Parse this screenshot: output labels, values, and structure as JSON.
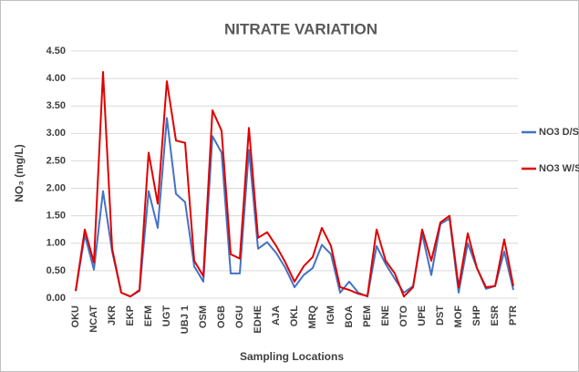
{
  "chart_data": {
    "type": "line",
    "title": "NITRATE VARIATION",
    "x_label": "Sampling Locations",
    "y_label": "NO₃ (mg/L)",
    "categories": [
      "OKU",
      null,
      "NCAT",
      null,
      "JKR",
      null,
      "EKP",
      null,
      "EFM",
      null,
      "UGT",
      null,
      "UBJ 1",
      null,
      "OSM",
      null,
      "OGB",
      null,
      "OGU",
      null,
      "EDHE",
      null,
      "AJA",
      null,
      "OKL",
      null,
      "MRQ",
      null,
      "IGM",
      null,
      "BOA",
      null,
      "PEM",
      null,
      "ENE",
      null,
      "OTO",
      null,
      "UPE",
      null,
      "DST",
      null,
      "MOF",
      null,
      "SHP",
      null,
      "ESR",
      null,
      "PTR"
    ],
    "series": [
      {
        "name": "NO3 D/S",
        "color": "#4472c4",
        "values": [
          0.13,
          1.15,
          0.52,
          1.95,
          0.85,
          0.1,
          0.03,
          0.13,
          1.95,
          1.28,
          3.28,
          1.9,
          1.75,
          0.58,
          0.3,
          2.95,
          2.65,
          0.45,
          0.45,
          2.7,
          0.9,
          1.02,
          0.82,
          0.55,
          0.2,
          0.42,
          0.55,
          0.97,
          0.8,
          0.1,
          0.3,
          0.1,
          0.03,
          0.95,
          0.62,
          0.35,
          0.1,
          0.22,
          1.17,
          0.42,
          1.35,
          1.45,
          0.1,
          1.0,
          0.55,
          0.17,
          0.22,
          0.85,
          0.15
        ]
      },
      {
        "name": "NO3 W/S",
        "color": "#e00000",
        "values": [
          0.13,
          1.25,
          0.65,
          4.12,
          0.9,
          0.1,
          0.03,
          0.15,
          2.65,
          1.72,
          3.95,
          2.87,
          2.83,
          0.68,
          0.4,
          3.42,
          3.05,
          0.8,
          0.72,
          3.1,
          1.1,
          1.2,
          0.95,
          0.65,
          0.3,
          0.58,
          0.75,
          1.28,
          0.95,
          0.2,
          0.15,
          0.08,
          0.04,
          1.25,
          0.68,
          0.45,
          0.03,
          0.2,
          1.25,
          0.68,
          1.38,
          1.5,
          0.2,
          1.18,
          0.55,
          0.2,
          0.22,
          1.07,
          0.22
        ]
      }
    ],
    "ylim": [
      0,
      4.5
    ],
    "yticks": [
      {
        "value": 0,
        "label": "0.00"
      },
      {
        "value": 0.5,
        "label": "0.50"
      },
      {
        "value": 1,
        "label": "1.00"
      },
      {
        "value": 1.5,
        "label": "1.50"
      },
      {
        "value": 2,
        "label": "2.00"
      },
      {
        "value": 2.5,
        "label": "2.50"
      },
      {
        "value": 3,
        "label": "3.00"
      },
      {
        "value": 3.5,
        "label": "3.50"
      },
      {
        "value": 4,
        "label": "4.00"
      },
      {
        "value": 4.5,
        "label": "4.50"
      }
    ],
    "grid": true,
    "legend": "right"
  }
}
